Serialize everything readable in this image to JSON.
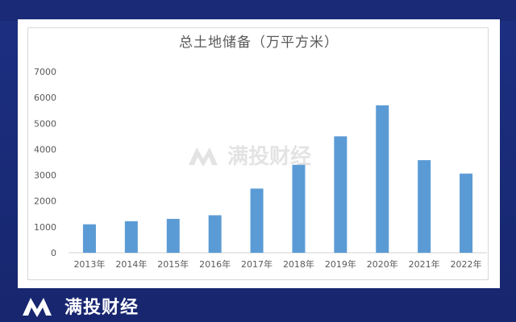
{
  "brand": {
    "name": "满投财经"
  },
  "colors": {
    "bar": "#5b9bd5",
    "background": "#1a2c7a",
    "axis_text": "#595959"
  },
  "chart_data": {
    "type": "bar",
    "title": "总土地储备（万平方米）",
    "categories": [
      "2013年",
      "2014年",
      "2015年",
      "2016年",
      "2017年",
      "2018年",
      "2019年",
      "2020年",
      "2021年",
      "2022年"
    ],
    "values": [
      1100,
      1220,
      1310,
      1450,
      2480,
      3400,
      4500,
      5700,
      3580,
      3060
    ],
    "ylim": [
      0,
      7000
    ],
    "yticks": [
      "0",
      "1000",
      "2000",
      "3000",
      "4000",
      "5000",
      "6000",
      "7000"
    ],
    "grid": false,
    "legend": "none"
  }
}
